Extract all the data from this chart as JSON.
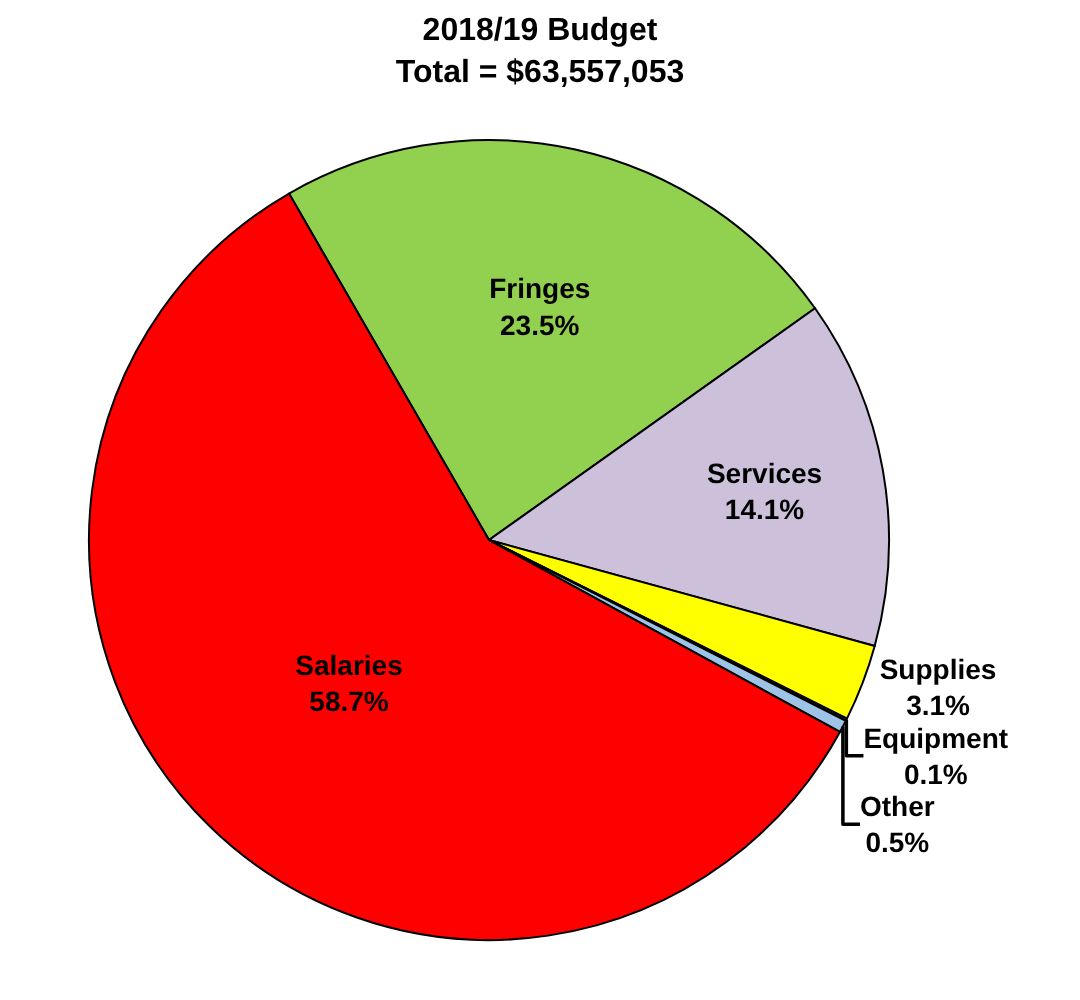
{
  "chart_data": {
    "type": "pie",
    "title": "2018/19 Budget",
    "subtitle": "Total = $63,557,053",
    "categories": [
      "Fringes",
      "Services",
      "Supplies",
      "Equipment",
      "Other",
      "Salaries"
    ],
    "values": [
      23.5,
      14.1,
      3.1,
      0.1,
      0.5,
      58.7
    ],
    "value_labels": [
      "23.5%",
      "14.1%",
      "3.1%",
      "0.1%",
      "0.5%",
      "58.7%"
    ],
    "colors": [
      "#92d050",
      "#ccc0da",
      "#ffff00",
      "#1f3864",
      "#9dc3e6",
      "#ff0000"
    ],
    "legend": false
  }
}
